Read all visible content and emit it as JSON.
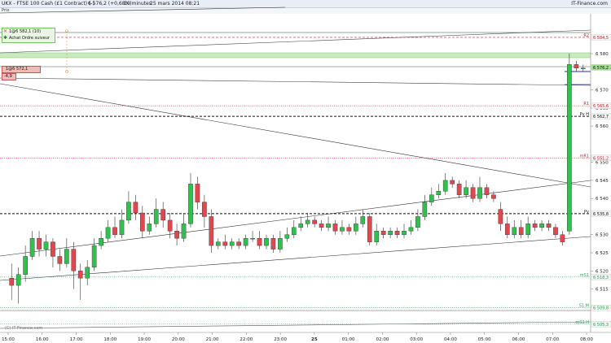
{
  "header": {
    "symbol": "UKX - FTSE 100 Cash (£1 Contract) (-)",
    "last_change": "6 576,2 (+0,68%)",
    "interval": "10 minutes",
    "datetime": "25 mars 2014 08:21",
    "brand": "IT-Finance.com",
    "prix_label": "Prix"
  },
  "order_box": {
    "top_label": "1@6 582,1 (10)",
    "action_label": "Achat Ordre suiveur",
    "second_label": "1@6 572,1",
    "third_label": "-4,9"
  },
  "watermark": "(C) IT-Finance.com",
  "chart_data": {
    "type": "candlestick",
    "title": "UKX - FTSE 100 Cash (£1 Contract) (-)",
    "interval": "10 minutes",
    "ylim": [
      6503,
      6591
    ],
    "yticks": [
      6580,
      6570,
      6565,
      6560,
      6550,
      6545,
      6540,
      6530,
      6525,
      6520,
      6515,
      6510
    ],
    "xticks": [
      "15:00",
      "16:00",
      "17:00",
      "18:00",
      "19:00",
      "20:00",
      "21:00",
      "22:00",
      "23:00",
      "25",
      "01:00",
      "02:00",
      "03:00",
      "04:00",
      "05:00",
      "06:00",
      "07:00",
      "08:00"
    ],
    "levels": [
      {
        "label": "R2",
        "value": 6584.5,
        "value_label": "6 584,5",
        "style": "dashed",
        "color": "#cc2233"
      },
      {
        "label": "",
        "value": 6576.2,
        "value_label": "6 576,2",
        "style": "band",
        "color": "#9fdc8f"
      },
      {
        "label": "R1",
        "value": 6565.6,
        "value_label": "6 565,6",
        "style": "dotted",
        "color": "#cc2233"
      },
      {
        "label": "Pv H",
        "value": 6562.7,
        "value_label": "6 562,7",
        "style": "dashed",
        "color": "#111111"
      },
      {
        "label": "mR1",
        "value": 6551.2,
        "value_label": "6 551,2",
        "style": "dotted",
        "color": "#cc2233"
      },
      {
        "label": "Pv",
        "value": 6535.8,
        "value_label": "6 535,8",
        "style": "dashed",
        "color": "#111111"
      },
      {
        "label": "mS1",
        "value": 6518.3,
        "value_label": "6 518,3",
        "style": "dotted",
        "color": "#22aa55"
      },
      {
        "label": "S1 M",
        "value": 6509.8,
        "value_label": "6 509,8",
        "style": "dotted",
        "color": "#22aa55"
      },
      {
        "label": "mS1 H",
        "value": 6505.3,
        "value_label": "6 505,3",
        "style": "dotted",
        "color": "#22aa55"
      }
    ],
    "candles": [
      [
        6518,
        6516,
        6522,
        6512
      ],
      [
        6516,
        6519,
        6521,
        6511
      ],
      [
        6519,
        6524,
        6527,
        6517
      ],
      [
        6524,
        6529,
        6531,
        6523
      ],
      [
        6529,
        6526,
        6531,
        6524
      ],
      [
        6526,
        6528,
        6530,
        6524
      ],
      [
        6528,
        6524,
        6529,
        6521
      ],
      [
        6524,
        6522,
        6526,
        6520
      ],
      [
        6522,
        6526,
        6529,
        6521
      ],
      [
        6526,
        6520,
        6528,
        6515
      ],
      [
        6520,
        6518,
        6522,
        6512
      ],
      [
        6518,
        6521,
        6523,
        6516
      ],
      [
        6521,
        6527,
        6529,
        6520
      ],
      [
        6527,
        6529,
        6531,
        6526
      ],
      [
        6529,
        6532,
        6534,
        6528
      ],
      [
        6532,
        6530,
        6535,
        6529
      ],
      [
        6530,
        6534,
        6537,
        6529
      ],
      [
        6534,
        6539,
        6542,
        6533
      ],
      [
        6539,
        6536,
        6541,
        6534
      ],
      [
        6536,
        6531,
        6538,
        6529
      ],
      [
        6531,
        6533,
        6535,
        6530
      ],
      [
        6533,
        6537,
        6540,
        6532
      ],
      [
        6537,
        6534,
        6539,
        6532
      ],
      [
        6534,
        6531,
        6536,
        6529
      ],
      [
        6531,
        6529,
        6533,
        6527
      ],
      [
        6529,
        6533,
        6536,
        6528
      ],
      [
        6533,
        6544,
        6547,
        6532
      ],
      [
        6544,
        6539,
        6546,
        6537
      ],
      [
        6539,
        6535,
        6541,
        6532
      ],
      [
        6535,
        6527,
        6537,
        6525
      ],
      [
        6527,
        6528,
        6529,
        6526
      ],
      [
        6528,
        6527,
        6530,
        6526
      ],
      [
        6527,
        6528,
        6529,
        6526
      ],
      [
        6528,
        6527,
        6529,
        6526
      ],
      [
        6527,
        6529,
        6530,
        6526
      ],
      [
        6529,
        6529,
        6531,
        6528
      ],
      [
        6529,
        6527,
        6531,
        6526
      ],
      [
        6527,
        6529,
        6530,
        6526
      ],
      [
        6529,
        6526,
        6530,
        6525
      ],
      [
        6526,
        6529,
        6531,
        6525
      ],
      [
        6529,
        6530,
        6532,
        6528
      ],
      [
        6530,
        6532,
        6534,
        6529
      ],
      [
        6532,
        6533,
        6535,
        6531
      ],
      [
        6533,
        6534,
        6536,
        6532
      ],
      [
        6534,
        6533,
        6535,
        6532
      ],
      [
        6533,
        6532,
        6534,
        6531
      ],
      [
        6532,
        6533,
        6535,
        6531
      ],
      [
        6533,
        6531,
        6534,
        6530
      ],
      [
        6531,
        6532,
        6534,
        6530
      ],
      [
        6532,
        6531,
        6533,
        6530
      ],
      [
        6531,
        6533,
        6535,
        6530
      ],
      [
        6533,
        6535,
        6537,
        6532
      ],
      [
        6535,
        6528,
        6536,
        6527
      ],
      [
        6528,
        6531,
        6533,
        6527
      ],
      [
        6531,
        6530,
        6532,
        6529
      ],
      [
        6530,
        6531,
        6532,
        6529
      ],
      [
        6531,
        6530,
        6532,
        6529
      ],
      [
        6530,
        6531,
        6533,
        6529
      ],
      [
        6531,
        6532,
        6534,
        6530
      ],
      [
        6532,
        6535,
        6537,
        6531
      ],
      [
        6535,
        6539,
        6541,
        6534
      ],
      [
        6539,
        6541,
        6543,
        6538
      ],
      [
        6541,
        6542,
        6544,
        6540
      ],
      [
        6542,
        6545,
        6547,
        6541
      ],
      [
        6545,
        6544,
        6546,
        6543
      ],
      [
        6544,
        6541,
        6545,
        6540
      ],
      [
        6541,
        6543,
        6545,
        6540
      ],
      [
        6543,
        6540,
        6544,
        6539
      ],
      [
        6540,
        6543,
        6546,
        6539
      ],
      [
        6543,
        6541,
        6544,
        6540
      ],
      [
        6541,
        6540,
        6542,
        6539
      ],
      [
        6537,
        6533,
        6539,
        6531
      ],
      [
        6533,
        6530,
        6535,
        6529
      ],
      [
        6530,
        6532,
        6534,
        6529
      ],
      [
        6532,
        6530,
        6534,
        6529
      ],
      [
        6530,
        6533,
        6535,
        6529
      ],
      [
        6533,
        6532,
        6534,
        6531
      ],
      [
        6532,
        6533,
        6534,
        6531
      ],
      [
        6533,
        6532,
        6534,
        6531
      ],
      [
        6532,
        6530,
        6533,
        6529
      ],
      [
        6530,
        6528,
        6531,
        6527
      ],
      [
        6531,
        6577,
        6580,
        6530
      ],
      [
        6577,
        6576,
        6578,
        6575
      ],
      [
        6576,
        6576,
        6577,
        6575
      ]
    ]
  }
}
